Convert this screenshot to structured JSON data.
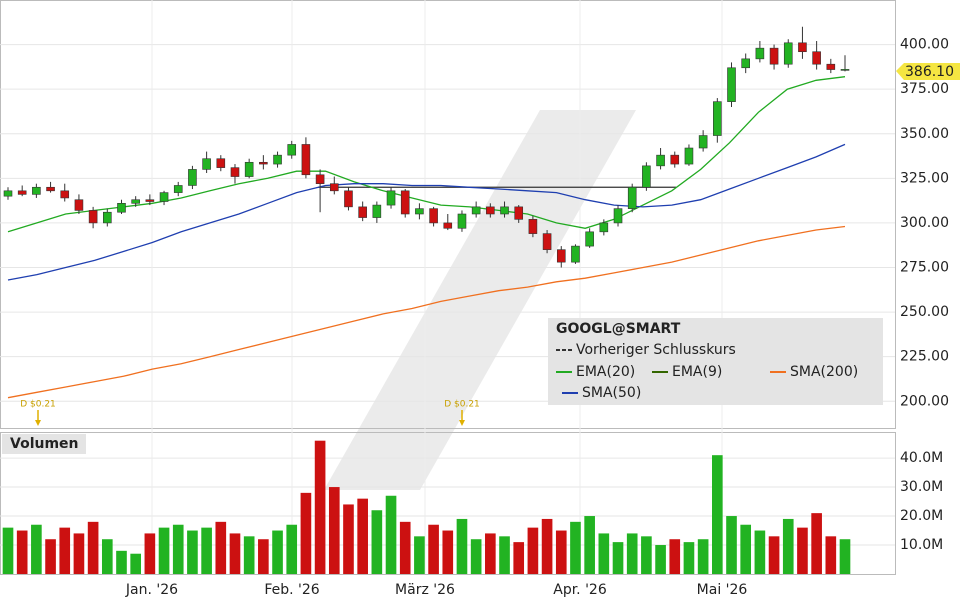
{
  "chart_data": {
    "type": "candlestick",
    "symbol": "GOOGL@SMART",
    "current_price_label": "386.10",
    "ylim": [
      185,
      425
    ],
    "yticks": [
      {
        "value": 200,
        "label": "200.00"
      },
      {
        "value": 225,
        "label": "225.00"
      },
      {
        "value": 250,
        "label": "250.00"
      },
      {
        "value": 275,
        "label": "275.00"
      },
      {
        "value": 300,
        "label": "300.00"
      },
      {
        "value": 325,
        "label": "325.00"
      },
      {
        "value": 350,
        "label": "350.00"
      },
      {
        "value": 375,
        "label": "375.00"
      },
      {
        "value": 400,
        "label": "400.00"
      }
    ],
    "x_labels": [
      "Jan. '26",
      "Feb. '26",
      "März '26",
      "Apr. '26",
      "Mai '26"
    ],
    "up_color": "#22b322",
    "down_color": "#cc1111",
    "ohlc": [
      [
        315,
        320,
        313,
        318
      ],
      [
        318,
        321,
        315,
        316
      ],
      [
        316,
        322,
        314,
        320
      ],
      [
        320,
        323,
        317,
        318
      ],
      [
        318,
        322,
        312,
        314
      ],
      [
        313,
        316,
        305,
        307
      ],
      [
        307,
        309,
        297,
        300
      ],
      [
        300,
        308,
        298,
        306
      ],
      [
        306,
        313,
        305,
        311
      ],
      [
        311,
        315,
        309,
        313
      ],
      [
        313,
        316,
        310,
        312
      ],
      [
        312,
        318,
        310,
        317
      ],
      [
        317,
        323,
        315,
        321
      ],
      [
        321,
        332,
        319,
        330
      ],
      [
        330,
        340,
        328,
        336
      ],
      [
        336,
        338,
        329,
        331
      ],
      [
        331,
        333,
        322,
        326
      ],
      [
        326,
        336,
        325,
        334
      ],
      [
        334,
        338,
        330,
        333
      ],
      [
        333,
        340,
        331,
        338
      ],
      [
        338,
        346,
        336,
        344
      ],
      [
        344,
        348,
        325,
        327
      ],
      [
        327,
        330,
        306,
        322
      ],
      [
        322,
        326,
        316,
        318
      ],
      [
        318,
        320,
        307,
        309
      ],
      [
        309,
        312,
        301,
        303
      ],
      [
        303,
        312,
        300,
        310
      ],
      [
        310,
        320,
        308,
        318
      ],
      [
        318,
        319,
        303,
        305
      ],
      [
        305,
        311,
        302,
        308
      ],
      [
        308,
        309,
        298,
        300
      ],
      [
        300,
        305,
        296,
        297
      ],
      [
        297,
        307,
        295,
        305
      ],
      [
        305,
        312,
        303,
        309
      ],
      [
        309,
        311,
        303,
        305
      ],
      [
        305,
        312,
        303,
        309
      ],
      [
        309,
        310,
        300,
        302
      ],
      [
        302,
        304,
        292,
        294
      ],
      [
        294,
        296,
        283,
        285
      ],
      [
        285,
        287,
        275,
        278
      ],
      [
        278,
        288,
        277,
        287
      ],
      [
        287,
        297,
        286,
        295
      ],
      [
        295,
        302,
        293,
        300
      ],
      [
        300,
        310,
        298,
        308
      ],
      [
        308,
        322,
        306,
        320
      ],
      [
        320,
        334,
        318,
        332
      ],
      [
        332,
        342,
        330,
        338
      ],
      [
        338,
        340,
        331,
        333
      ],
      [
        333,
        344,
        332,
        342
      ],
      [
        342,
        352,
        340,
        349
      ],
      [
        349,
        370,
        345,
        368
      ],
      [
        368,
        390,
        365,
        387
      ],
      [
        387,
        395,
        384,
        392
      ],
      [
        392,
        402,
        390,
        398
      ],
      [
        398,
        400,
        386,
        389
      ],
      [
        389,
        403,
        387,
        401
      ],
      [
        401,
        410,
        392,
        396
      ],
      [
        396,
        402,
        386,
        389
      ],
      [
        389,
        392,
        384,
        386
      ],
      [
        386,
        394,
        385,
        386.1
      ]
    ],
    "previous_close": {
      "name": "Vorheriger Schlusskurs",
      "value": 320,
      "color": "#333333"
    },
    "lines": [
      {
        "name": "EMA(20)",
        "color": "#22aa22",
        "values": [
          295,
          300,
          305,
          307,
          309,
          311,
          314,
          318,
          322,
          325,
          329,
          329,
          323,
          318,
          314,
          310,
          309,
          307,
          305,
          300,
          297,
          302,
          310,
          318,
          330,
          345,
          362,
          375,
          380,
          382
        ]
      },
      {
        "name": "EMA(9)",
        "color": "#336600",
        "values": []
      },
      {
        "name": "SMA(200)",
        "color": "#f07020",
        "values": [
          202,
          205,
          208,
          211,
          214,
          218,
          221,
          225,
          229,
          233,
          237,
          241,
          245,
          249,
          252,
          256,
          259,
          262,
          264,
          267,
          269,
          272,
          275,
          278,
          282,
          286,
          290,
          293,
          296,
          298
        ]
      },
      {
        "name": "SMA(50)",
        "color": "#1f3fb0",
        "values": [
          268,
          271,
          275,
          279,
          284,
          289,
          295,
          300,
          305,
          311,
          317,
          321,
          322,
          322,
          321,
          321,
          320,
          319,
          318,
          317,
          313,
          310,
          309,
          310,
          313,
          319,
          325,
          331,
          337,
          344
        ]
      }
    ],
    "dividends": [
      "D $0.21",
      "D $0.21"
    ],
    "volume": {
      "label": "Volumen",
      "ylim": [
        0,
        49
      ],
      "yticks": [
        {
          "value": 10,
          "label": "10.0M"
        },
        {
          "value": 20,
          "label": "20.0M"
        },
        {
          "value": 30,
          "label": "30.0M"
        },
        {
          "value": 40,
          "label": "40.0M"
        }
      ],
      "values": [
        16,
        15,
        17,
        12,
        16,
        14,
        18,
        12,
        8,
        7,
        14,
        16,
        17,
        15,
        16,
        18,
        14,
        13,
        12,
        15,
        17,
        28,
        46,
        30,
        24,
        26,
        22,
        27,
        18,
        13,
        17,
        15,
        19,
        12,
        14,
        13,
        11,
        16,
        19,
        15,
        18,
        20,
        14,
        11,
        14,
        13,
        10,
        12,
        11,
        12,
        41,
        20,
        17,
        15,
        13,
        19,
        16,
        21,
        13,
        12
      ]
    }
  }
}
